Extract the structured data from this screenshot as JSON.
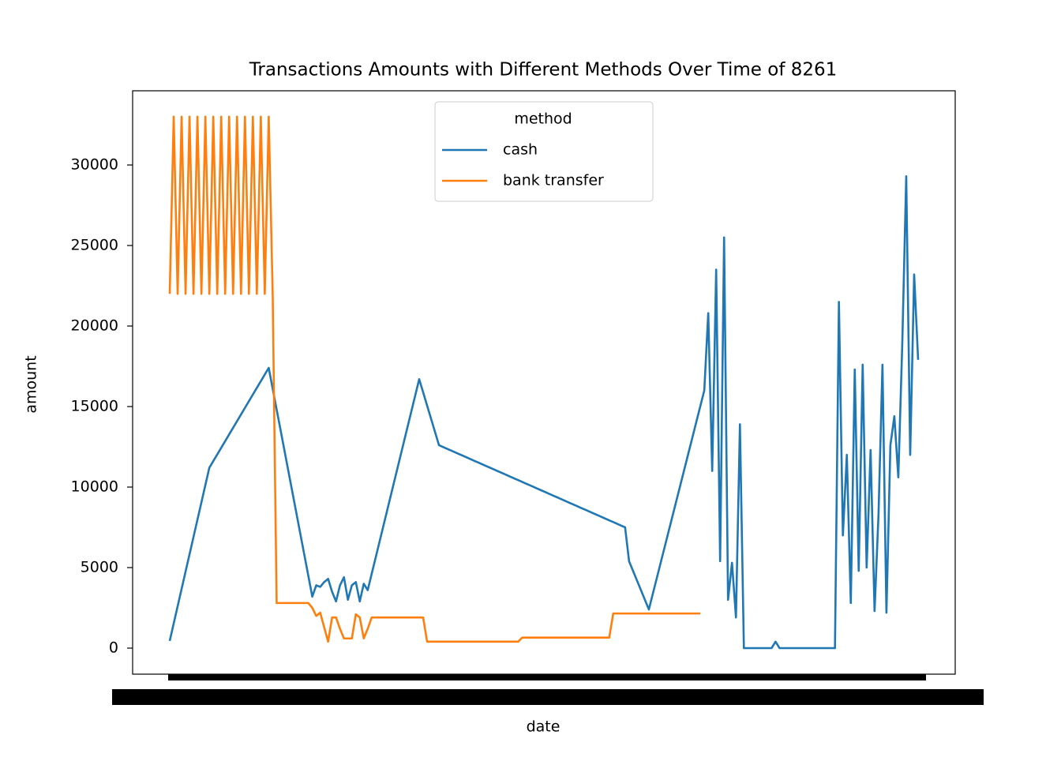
{
  "chart_data": {
    "type": "line",
    "title": "Transactions Amounts with Different Methods Over Time of 8261",
    "xlabel": "date",
    "ylabel": "amount",
    "legend_title": "method",
    "legend": "upper center",
    "categories": [
      null,
      null,
      null,
      null,
      null,
      null,
      null,
      null,
      null,
      null,
      null,
      null,
      null,
      null,
      null,
      null,
      null,
      null,
      null,
      null,
      null,
      null,
      null,
      null,
      null,
      null,
      null,
      null,
      null,
      null,
      null,
      null,
      null,
      null,
      null,
      null,
      null,
      null,
      null,
      null,
      null,
      null,
      null,
      null,
      null,
      null,
      null,
      null,
      null,
      null,
      null,
      null,
      null,
      null,
      null,
      null,
      null,
      null,
      null,
      null,
      null,
      null,
      null,
      null,
      null,
      null,
      null,
      null,
      null,
      null,
      null,
      null,
      null,
      null,
      null,
      null,
      null,
      null,
      null,
      null,
      null,
      null,
      null,
      null,
      null,
      null,
      null,
      null,
      null,
      null,
      null,
      null,
      null,
      null,
      null,
      null,
      null,
      null,
      null,
      null,
      null,
      null,
      null,
      null,
      null,
      null,
      null,
      null,
      null,
      null,
      null,
      null,
      null,
      null,
      null,
      null,
      null,
      null,
      null,
      null,
      null,
      null,
      null,
      null,
      null,
      null,
      null,
      null,
      null,
      null,
      null,
      null,
      null,
      null,
      null,
      null,
      null,
      null,
      null,
      null,
      null,
      null,
      null,
      null,
      null,
      null,
      null,
      null,
      null,
      null,
      null,
      null,
      null,
      null,
      null,
      null,
      null,
      null,
      null,
      null,
      null,
      null,
      null,
      null,
      null,
      null,
      null,
      null,
      null,
      null,
      null,
      null,
      null,
      null,
      null,
      null,
      null,
      null,
      null,
      null,
      null,
      null,
      null,
      null,
      null,
      null,
      null,
      null,
      null,
      null
    ],
    "series": [
      {
        "name": "cash",
        "color": "#1f77b4",
        "values": [
          450,
          1525,
          2600,
          3675,
          4750,
          5825,
          6900,
          7975,
          9050,
          10125,
          11200,
          11613,
          12027,
          12440,
          12853,
          13267,
          13680,
          14093,
          14507,
          14920,
          15333,
          15747,
          16160,
          16573,
          16987,
          17400,
          16109,
          14818,
          13527,
          12236,
          10945,
          9655,
          8364,
          7073,
          5782,
          4491,
          3200,
          3900,
          3800,
          4100,
          4300,
          3500,
          2900,
          3900,
          4400,
          3000,
          3900,
          4100,
          2900,
          4000,
          3600,
          4608,
          5615,
          6623,
          7631,
          8638,
          9646,
          10654,
          11662,
          12669,
          13677,
          14685,
          15692,
          16700,
          15880,
          15060,
          14240,
          13420,
          12600,
          12491,
          12383,
          12274,
          12166,
          12057,
          11949,
          11840,
          11732,
          11623,
          11515,
          11406,
          11298,
          11189,
          11081,
          10972,
          10864,
          10755,
          10647,
          10538,
          10430,
          10321,
          10213,
          10104,
          9996,
          9887,
          9779,
          9670,
          9562,
          9453,
          9345,
          9236,
          9128,
          9019,
          8911,
          8802,
          8694,
          8585,
          8477,
          8368,
          8260,
          8151,
          8043,
          7934,
          7826,
          7717,
          7609,
          7500,
          5400,
          4800,
          4200,
          3600,
          3000,
          2400,
          3371,
          4343,
          5314,
          6286,
          7257,
          8229,
          9200,
          10171,
          11143,
          12114,
          13086,
          14057,
          15029,
          16000,
          20800,
          11000,
          23500,
          5400,
          25500,
          3000,
          5300,
          1900,
          13900,
          0,
          0,
          0,
          0,
          0,
          0,
          0,
          0,
          400,
          0,
          0,
          0,
          0,
          0,
          0,
          0,
          0,
          0,
          0,
          0,
          0,
          0,
          0,
          0,
          21500,
          7000,
          12000,
          2800,
          17300,
          4800,
          17600,
          5000,
          12300,
          2300,
          8300,
          17600,
          2200,
          12600,
          14400,
          10600,
          18900,
          29300,
          12000,
          23200,
          17900
        ]
      },
      {
        "name": "bank transfer",
        "color": "#ff7f0e",
        "values": [
          22000,
          33000,
          22000,
          33000,
          22000,
          33000,
          22000,
          33000,
          22000,
          33000,
          22000,
          33000,
          22000,
          33000,
          22000,
          33000,
          22000,
          33000,
          22000,
          33000,
          22000,
          33000,
          22000,
          33000,
          22000,
          33000,
          22000,
          2800,
          2800,
          2800,
          2800,
          2800,
          2800,
          2800,
          2800,
          2800,
          2500,
          2000,
          2200,
          1300,
          400,
          1900,
          1900,
          1200,
          600,
          600,
          600,
          2100,
          1900,
          600,
          1200,
          1900,
          1900,
          1900,
          1900,
          1900,
          1900,
          1900,
          1900,
          1900,
          1900,
          1900,
          1900,
          1900,
          1900,
          400,
          400,
          400,
          400,
          400,
          400,
          400,
          400,
          400,
          400,
          400,
          400,
          400,
          400,
          400,
          400,
          400,
          400,
          400,
          400,
          400,
          400,
          400,
          400,
          650,
          650,
          650,
          650,
          650,
          650,
          650,
          650,
          650,
          650,
          650,
          650,
          650,
          650,
          650,
          650,
          650,
          650,
          650,
          650,
          650,
          650,
          650,
          2150,
          2150,
          2150,
          2150,
          2150,
          2150,
          2150,
          2150,
          2150,
          2150,
          2150,
          2150,
          2150,
          2150,
          2150,
          2150,
          2150,
          2150,
          2150,
          2150,
          2150,
          2150,
          2150,
          null,
          null,
          null,
          null,
          null,
          null,
          null,
          null,
          null,
          null,
          null,
          null,
          null,
          null,
          null,
          null,
          null,
          null,
          null,
          null,
          null,
          null,
          null,
          null,
          null,
          null,
          null,
          null,
          null,
          null,
          null,
          null,
          null,
          null,
          null,
          null,
          null,
          null,
          null,
          null,
          null,
          null,
          null,
          null,
          null,
          null,
          null,
          null,
          null,
          null,
          null,
          null,
          null,
          null,
          null
        ]
      }
    ],
    "ylim": [
      -1618,
      34608
    ],
    "yticks": [
      0,
      5000,
      10000,
      15000,
      20000,
      25000,
      30000
    ]
  }
}
